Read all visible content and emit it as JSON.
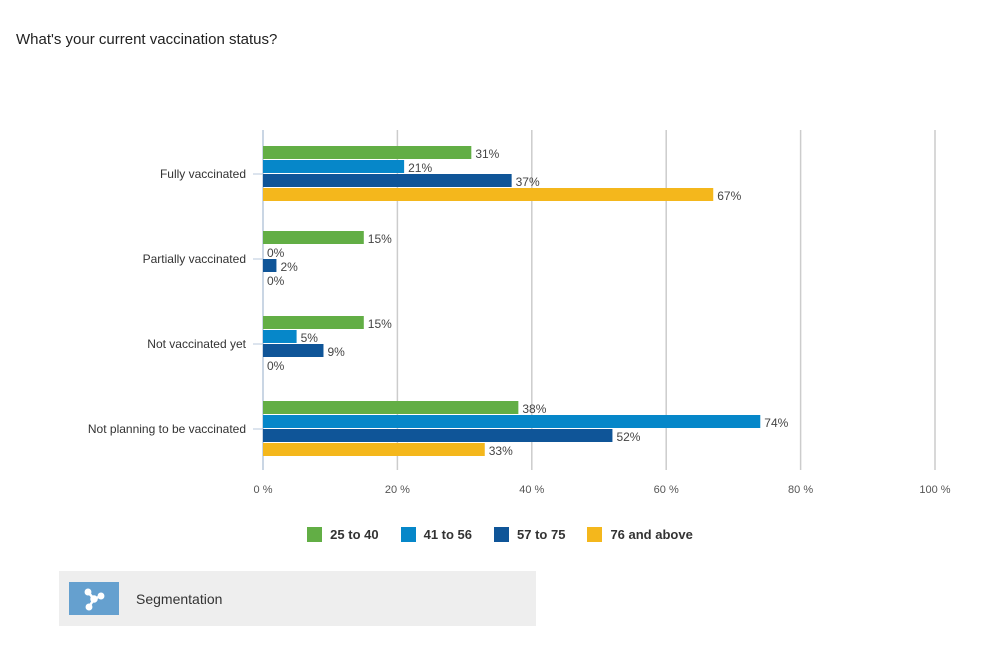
{
  "chart_data": {
    "type": "bar",
    "orientation": "horizontal",
    "title": "What's your current vaccination status?",
    "categories": [
      "Fully vaccinated",
      "Partially vaccinated",
      "Not vaccinated yet",
      "Not planning to be vaccinated"
    ],
    "series": [
      {
        "name": "25 to 40",
        "color": "#62ae45",
        "values": [
          31,
          15,
          15,
          38
        ]
      },
      {
        "name": "41 to 56",
        "color": "#0687c9",
        "values": [
          21,
          0,
          5,
          74
        ]
      },
      {
        "name": "57 to 75",
        "color": "#0f5598",
        "values": [
          37,
          2,
          9,
          52
        ]
      },
      {
        "name": "76 and above",
        "color": "#f4b71c",
        "values": [
          67,
          0,
          0,
          33
        ]
      }
    ],
    "xlim": [
      0,
      100
    ],
    "xticks": [
      0,
      20,
      40,
      60,
      80,
      100
    ],
    "xtick_labels": [
      "0 %",
      "20 %",
      "40 %",
      "60 %",
      "80 %",
      "100 %"
    ],
    "value_suffix": "%",
    "grid": true,
    "legend_position": "bottom"
  },
  "segmentation": {
    "label": "Segmentation",
    "icon": "segmentation-icon"
  }
}
